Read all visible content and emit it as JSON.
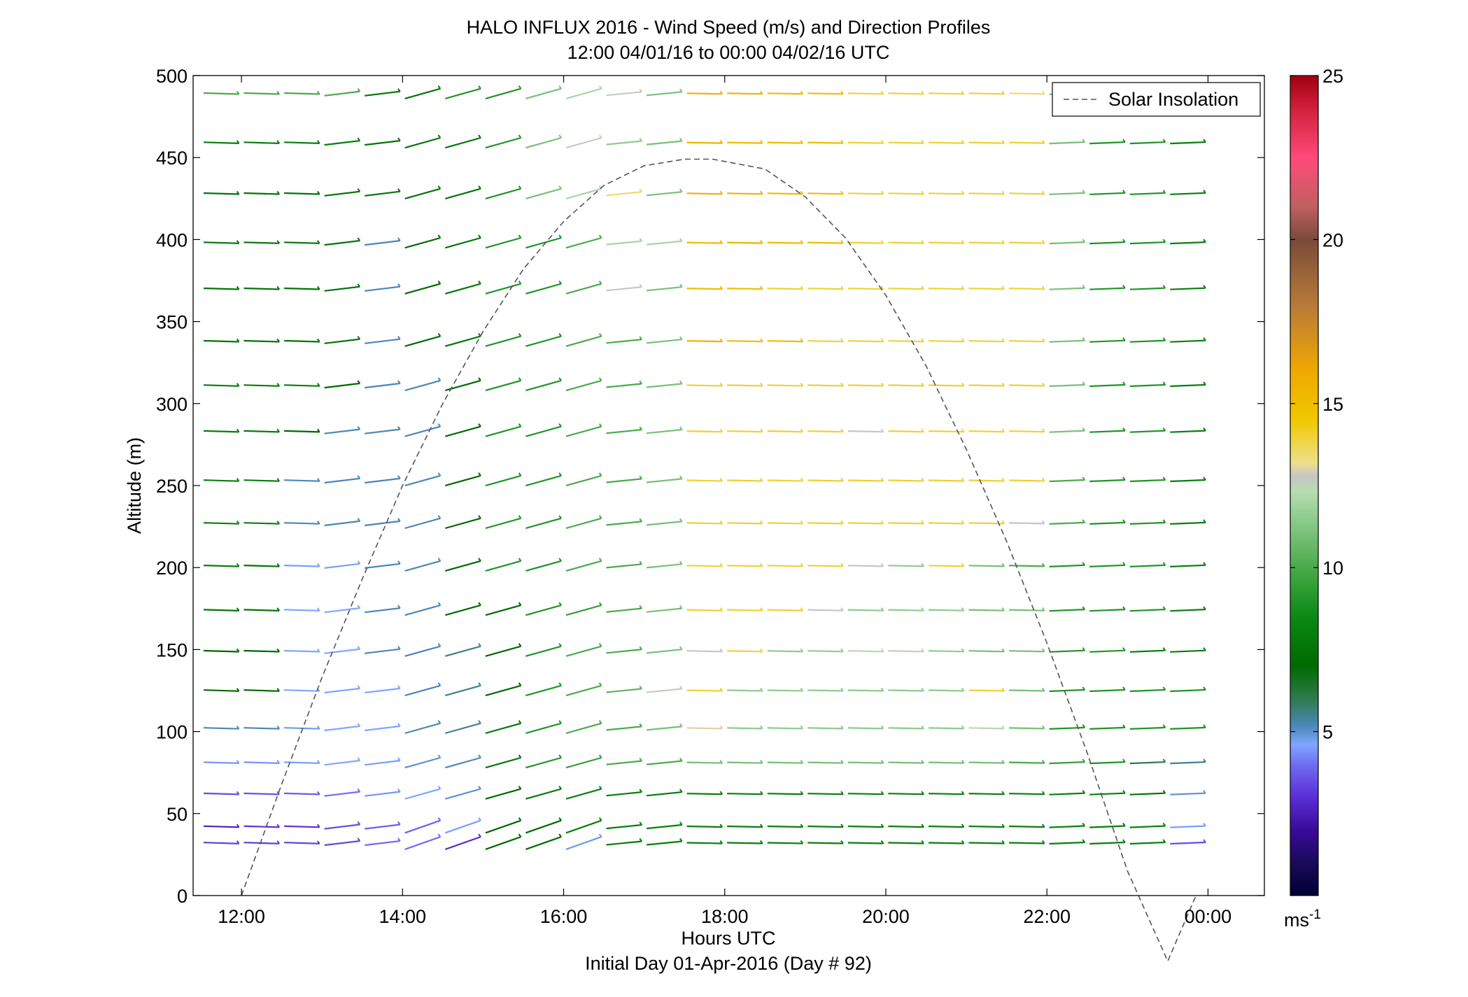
{
  "chart_data": {
    "type": "scatter",
    "title": "HALO INFLUX 2016 - Wind Speed (m/s) and Direction Profiles",
    "subtitle": "12:00 04/01/16 to 00:00 04/02/16  UTC",
    "xlabel": "Hours UTC",
    "xlabel2": "Initial Day 01-Apr-2016 (Day # 92)",
    "ylabel": "Altitude (m)",
    "xlim": [
      11.4,
      24.7
    ],
    "ylim": [
      0,
      500
    ],
    "x_ticks": [
      12,
      14,
      16,
      18,
      20,
      22,
      24
    ],
    "x_tick_labels": [
      "12:00",
      "14:00",
      "16:00",
      "18:00",
      "20:00",
      "22:00",
      "00:00"
    ],
    "y_ticks": [
      0,
      50,
      100,
      150,
      200,
      250,
      300,
      350,
      400,
      450,
      500
    ],
    "y_tick_labels": [
      "0",
      "50",
      "100",
      "150",
      "200",
      "250",
      "300",
      "350",
      "400",
      "450",
      "500"
    ],
    "grid": false,
    "legend": {
      "position": "top-right",
      "entries": [
        "Solar Insolation"
      ]
    },
    "colorbar": {
      "range": [
        0,
        25
      ],
      "ticks": [
        5,
        10,
        15,
        20,
        25
      ],
      "tick_labels": [
        "5",
        "10",
        "15",
        "20",
        "25"
      ],
      "unit_base": "ms",
      "unit_exp": "-1"
    },
    "altitudes": [
      32,
      42,
      62,
      81,
      102,
      125,
      149,
      174,
      201,
      227,
      253,
      283,
      311,
      338,
      370,
      398,
      428,
      459,
      489
    ],
    "times": [
      11.75,
      12.25,
      12.75,
      13.25,
      13.75,
      14.25,
      14.75,
      15.25,
      15.75,
      16.25,
      16.75,
      17.25,
      17.75,
      18.25,
      18.75,
      19.25,
      19.75,
      20.25,
      20.75,
      21.25,
      21.75,
      22.25,
      22.75,
      23.25,
      23.75
    ],
    "series": [
      {
        "name": "Solar Insolation",
        "type": "line",
        "style": "dashed",
        "color": "#555555",
        "x": [
          12,
          12.5,
          13,
          13.5,
          14,
          14.5,
          15,
          15.5,
          16,
          16.5,
          17,
          17.5,
          17.85,
          18.5,
          19,
          19.5,
          20,
          20.5,
          21,
          21.5,
          22,
          22.5,
          23,
          23.5,
          23.85
        ],
        "y": [
          0,
          68,
          133,
          193,
          250,
          300,
          344,
          382,
          411,
          433,
          445,
          449,
          449,
          443,
          426,
          401,
          366,
          323,
          272,
          216,
          154,
          87,
          15,
          -40,
          0
        ]
      }
    ],
    "wind_speed_by_altitude": [
      {
        "altitude": 32,
        "speed": [
          3.2,
          3.2,
          3.2,
          3.4,
          4.0,
          4.0,
          3.0,
          7.0,
          7.0,
          4.8,
          8.0,
          8.0,
          8.0,
          8.0,
          8.0,
          8.0,
          8.0,
          8.0,
          8.0,
          8.0,
          8.0,
          8.0,
          8.0,
          8.0,
          3.5
        ]
      },
      {
        "altitude": 42,
        "speed": [
          2.6,
          3.0,
          3.0,
          3.5,
          3.8,
          3.8,
          4.5,
          7.0,
          7.0,
          8.0,
          8.0,
          8.0,
          8.0,
          8.0,
          8.0,
          8.0,
          8.0,
          8.0,
          8.0,
          8.0,
          8.0,
          8.0,
          8.0,
          8.0,
          4.5
        ]
      },
      {
        "altitude": 62,
        "speed": [
          3.5,
          3.6,
          3.7,
          4.0,
          4.4,
          4.6,
          5.0,
          7.0,
          7.8,
          8.0,
          8.0,
          8.0,
          8.0,
          8.0,
          8.0,
          8.0,
          8.0,
          8.0,
          8.0,
          8.0,
          8.0,
          8.0,
          8.0,
          7.5,
          5.0
        ]
      },
      {
        "altitude": 81,
        "speed": [
          4.4,
          4.4,
          4.5,
          4.6,
          4.7,
          5.0,
          5.2,
          7.5,
          9.0,
          9.5,
          10.0,
          10.0,
          11.0,
          11.0,
          11.0,
          11.0,
          11.0,
          11.0,
          11.0,
          11.0,
          10.0,
          9.5,
          9.0,
          6.0,
          5.5
        ]
      },
      {
        "altitude": 102,
        "speed": [
          5.2,
          5.2,
          4.8,
          4.6,
          4.6,
          5.2,
          5.5,
          7.5,
          9.0,
          10.0,
          10.0,
          11.0,
          13.0,
          11.5,
          11.5,
          11.5,
          11.5,
          11.5,
          11.5,
          12.5,
          11.0,
          9.0,
          9.0,
          9.0,
          9.0
        ]
      },
      {
        "altitude": 125,
        "speed": [
          7.0,
          7.0,
          4.6,
          4.6,
          4.6,
          5.2,
          5.5,
          7.0,
          9.0,
          10.0,
          10.5,
          12.5,
          14.0,
          11.5,
          11.5,
          11.5,
          11.5,
          11.5,
          11.5,
          14.0,
          11.0,
          9.0,
          9.0,
          9.0,
          9.0
        ]
      },
      {
        "altitude": 149,
        "speed": [
          7.0,
          7.0,
          4.6,
          4.6,
          5.2,
          5.2,
          5.6,
          7.0,
          9.0,
          10.0,
          10.0,
          11.0,
          12.8,
          14.0,
          11.5,
          11.5,
          12.5,
          12.5,
          11.5,
          11.0,
          11.0,
          9.0,
          9.0,
          8.0,
          8.0
        ]
      },
      {
        "altitude": 174,
        "speed": [
          7.5,
          7.5,
          4.6,
          4.6,
          5.2,
          5.2,
          7.0,
          7.0,
          9.0,
          9.5,
          10.0,
          11.0,
          14.0,
          14.0,
          14.0,
          12.8,
          11.5,
          11.5,
          11.5,
          11.0,
          11.0,
          9.0,
          9.0,
          9.0,
          8.0
        ]
      },
      {
        "altitude": 201,
        "speed": [
          8.0,
          7.5,
          4.5,
          4.7,
          5.2,
          5.2,
          7.0,
          9.0,
          9.0,
          10.0,
          10.0,
          11.0,
          14.0,
          14.0,
          14.0,
          14.0,
          12.8,
          11.5,
          14.0,
          11.0,
          10.0,
          9.0,
          9.0,
          9.0,
          8.0
        ]
      },
      {
        "altitude": 227,
        "speed": [
          8.0,
          8.0,
          5.2,
          5.2,
          5.2,
          5.2,
          7.0,
          9.0,
          9.0,
          10.0,
          10.0,
          11.0,
          14.0,
          14.0,
          14.0,
          14.0,
          14.0,
          14.0,
          14.0,
          14.0,
          12.8,
          10.0,
          9.0,
          9.0,
          8.0
        ]
      },
      {
        "altitude": 253,
        "speed": [
          8.0,
          8.0,
          5.2,
          5.2,
          5.2,
          5.2,
          7.0,
          9.0,
          9.0,
          10.0,
          10.0,
          11.0,
          14.0,
          14.0,
          14.0,
          14.0,
          14.0,
          14.0,
          14.0,
          14.0,
          14.0,
          10.0,
          9.0,
          9.0,
          8.0
        ]
      },
      {
        "altitude": 283,
        "speed": [
          8.0,
          8.0,
          7.0,
          5.2,
          5.2,
          5.2,
          7.0,
          9.0,
          9.0,
          10.0,
          10.0,
          11.0,
          14.0,
          14.0,
          14.0,
          14.0,
          12.8,
          14.0,
          14.0,
          14.0,
          14.0,
          11.0,
          9.0,
          9.0,
          8.0
        ]
      },
      {
        "altitude": 311,
        "speed": [
          8.0,
          8.0,
          8.0,
          7.0,
          5.2,
          5.2,
          7.0,
          9.0,
          9.0,
          10.0,
          10.0,
          11.0,
          14.0,
          14.0,
          14.0,
          14.0,
          14.0,
          14.0,
          14.0,
          14.0,
          14.0,
          11.0,
          9.0,
          9.0,
          8.0
        ]
      },
      {
        "altitude": 338,
        "speed": [
          7.5,
          7.5,
          7.5,
          7.5,
          5.2,
          7.0,
          7.5,
          9.0,
          9.0,
          10.0,
          10.0,
          11.0,
          15.5,
          15.0,
          15.0,
          14.0,
          14.0,
          14.0,
          14.0,
          14.0,
          14.0,
          11.0,
          9.0,
          9.0,
          8.0
        ]
      },
      {
        "altitude": 370,
        "speed": [
          7.5,
          7.5,
          7.5,
          7.5,
          5.2,
          7.0,
          7.5,
          9.0,
          9.0,
          10.0,
          12.8,
          11.0,
          15.0,
          15.0,
          14.0,
          14.0,
          14.0,
          14.0,
          14.0,
          14.0,
          14.0,
          11.0,
          9.0,
          9.0,
          8.0
        ]
      },
      {
        "altitude": 398,
        "speed": [
          7.5,
          7.5,
          7.5,
          7.5,
          5.2,
          7.0,
          7.5,
          9.0,
          9.0,
          10.0,
          12.0,
          12.0,
          15.0,
          15.5,
          15.0,
          15.0,
          14.0,
          14.0,
          14.0,
          14.0,
          14.0,
          11.0,
          9.0,
          9.0,
          8.0
        ]
      },
      {
        "altitude": 428,
        "speed": [
          7.5,
          7.5,
          7.5,
          7.5,
          7.5,
          7.5,
          7.5,
          9.0,
          11.0,
          12.0,
          13.5,
          11.0,
          15.5,
          15.5,
          15.0,
          15.0,
          14.0,
          14.0,
          14.0,
          14.0,
          14.0,
          11.0,
          9.0,
          9.0,
          8.0
        ]
      },
      {
        "altitude": 459,
        "speed": [
          8.0,
          8.0,
          8.0,
          8.0,
          7.5,
          7.5,
          7.5,
          9.0,
          11.0,
          12.6,
          11.5,
          11.0,
          15.5,
          15.0,
          15.0,
          15.0,
          14.0,
          14.0,
          14.0,
          14.0,
          14.0,
          11.0,
          9.0,
          9.0,
          8.0
        ]
      },
      {
        "altitude": 489,
        "speed": [
          10.0,
          10.0,
          10.0,
          10.0,
          7.5,
          7.5,
          9.0,
          9.0,
          11.0,
          12.0,
          12.5,
          11.0,
          15.5,
          15.5,
          15.0,
          15.0,
          14.0,
          14.0,
          14.0,
          14.0,
          13.5,
          11.0,
          9.0,
          9.0,
          9.0
        ]
      }
    ]
  }
}
